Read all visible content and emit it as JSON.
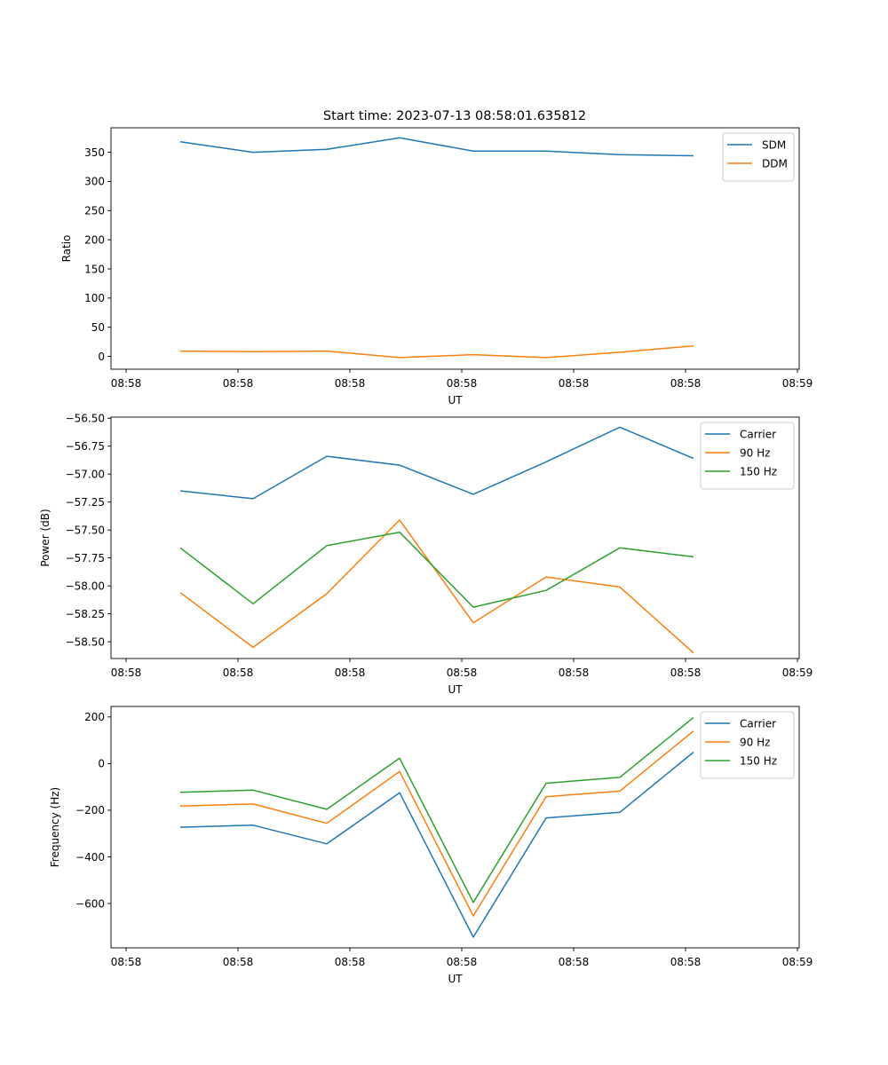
{
  "title": "Start time: 2023-07-13 08:58:01.635812",
  "colors": {
    "blue": "#1f77b4",
    "orange": "#ff7f0e",
    "green": "#2ca02c"
  },
  "chart_data": [
    {
      "type": "line",
      "title": "Start time: 2023-07-13 08:58:01.635812",
      "xlabel": "UT",
      "ylabel": "Ratio",
      "x_tick_labels": [
        "08:58",
        "08:58",
        "08:58",
        "08:58",
        "08:58",
        "08:58",
        "08:59"
      ],
      "y_ticks": [
        0,
        50,
        100,
        150,
        200,
        250,
        300,
        350
      ],
      "ylim": [
        -22,
        392
      ],
      "x_index": [
        1,
        2,
        3,
        4,
        5,
        6,
        7,
        8
      ],
      "legend_position": "top-right",
      "series": [
        {
          "name": "SDM",
          "color": "#1f77b4",
          "values": [
            368,
            350,
            355,
            375,
            352,
            352,
            346,
            344
          ]
        },
        {
          "name": "DDM",
          "color": "#ff7f0e",
          "values": [
            9,
            8,
            9,
            -2,
            3,
            -2,
            7,
            18
          ]
        }
      ]
    },
    {
      "type": "line",
      "title": "",
      "xlabel": "UT",
      "ylabel": "Power (dB)",
      "x_tick_labels": [
        "08:58",
        "08:58",
        "08:58",
        "08:58",
        "08:58",
        "08:58",
        "08:59"
      ],
      "y_ticks": [
        -58.5,
        -58.25,
        -58.0,
        -57.75,
        -57.5,
        -57.25,
        -57.0,
        -56.75,
        -56.5
      ],
      "y_tick_labels": [
        "−58.50",
        "−58.25",
        "−58.00",
        "−57.75",
        "−57.50",
        "−57.25",
        "−57.00",
        "−56.75",
        "−56.50"
      ],
      "ylim": [
        -58.65,
        -56.49
      ],
      "x_index": [
        1,
        2,
        3,
        4,
        5,
        6,
        7,
        8
      ],
      "legend_position": "top-right",
      "series": [
        {
          "name": "Carrier",
          "color": "#1f77b4",
          "values": [
            -57.15,
            -57.22,
            -56.84,
            -56.92,
            -57.18,
            -56.89,
            -56.58,
            -56.86
          ]
        },
        {
          "name": "90 Hz",
          "color": "#ff7f0e",
          "values": [
            -58.06,
            -58.55,
            -58.07,
            -57.41,
            -58.33,
            -57.92,
            -58.01,
            -58.6
          ]
        },
        {
          "name": "150 Hz",
          "color": "#2ca02c",
          "values": [
            -57.66,
            -58.16,
            -57.64,
            -57.52,
            -58.19,
            -58.04,
            -57.66,
            -57.74
          ]
        }
      ]
    },
    {
      "type": "line",
      "title": "",
      "xlabel": "UT",
      "ylabel": "Frequency (Hz)",
      "x_tick_labels": [
        "08:58",
        "08:58",
        "08:58",
        "08:58",
        "08:58",
        "08:58",
        "08:59"
      ],
      "y_ticks": [
        -600,
        -400,
        -200,
        0,
        200
      ],
      "y_tick_labels": [
        "−600",
        "−400",
        "−200",
        "0",
        "200"
      ],
      "ylim": [
        -790,
        245
      ],
      "x_index": [
        1,
        2,
        3,
        4,
        5,
        6,
        7,
        8
      ],
      "legend_position": "top-right",
      "series": [
        {
          "name": "Carrier",
          "color": "#1f77b4",
          "values": [
            -273,
            -264,
            -344,
            -125,
            -744,
            -233,
            -209,
            49
          ]
        },
        {
          "name": "90 Hz",
          "color": "#ff7f0e",
          "values": [
            -182,
            -173,
            -256,
            -34,
            -653,
            -142,
            -118,
            140
          ]
        },
        {
          "name": "150 Hz",
          "color": "#2ca02c",
          "values": [
            -123,
            -114,
            -196,
            23,
            -595,
            -84,
            -59,
            198
          ]
        }
      ]
    }
  ]
}
